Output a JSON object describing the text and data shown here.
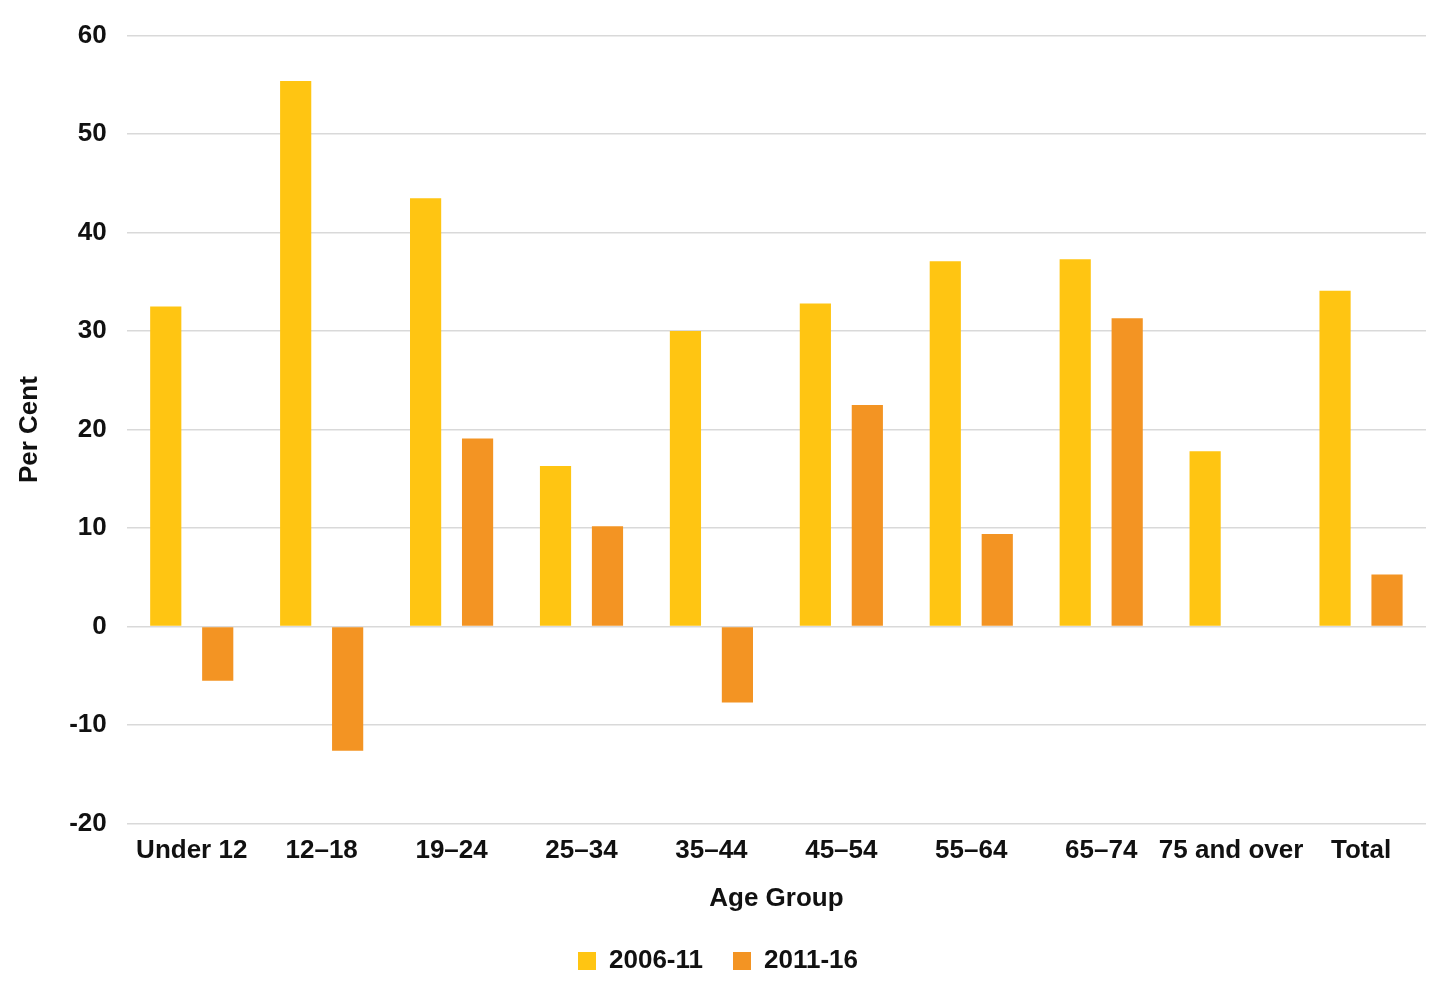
{
  "chart_data": {
    "type": "bar",
    "xlabel": "Age Group",
    "ylabel": "Per Cent",
    "categories": [
      "Under 12",
      "12–18",
      "19–24",
      "25–34",
      "35–44",
      "45–54",
      "55–64",
      "65–74",
      "75 and over",
      "Total"
    ],
    "series": [
      {
        "name": "2006-11",
        "color": "#ffc512",
        "values": [
          32.5,
          55.4,
          43.5,
          16.3,
          30.0,
          32.8,
          37.1,
          37.3,
          17.8,
          34.1
        ]
      },
      {
        "name": "2011-16",
        "color": "#f39423",
        "values": [
          -5.5,
          -12.6,
          19.1,
          10.2,
          -7.7,
          22.5,
          9.4,
          31.3,
          null,
          5.3
        ]
      }
    ],
    "ylim": [
      -20,
      60
    ],
    "yticks": [
      -20,
      -10,
      0,
      10,
      20,
      30,
      40,
      50,
      60
    ],
    "grid": "y",
    "legend": "bottom"
  }
}
